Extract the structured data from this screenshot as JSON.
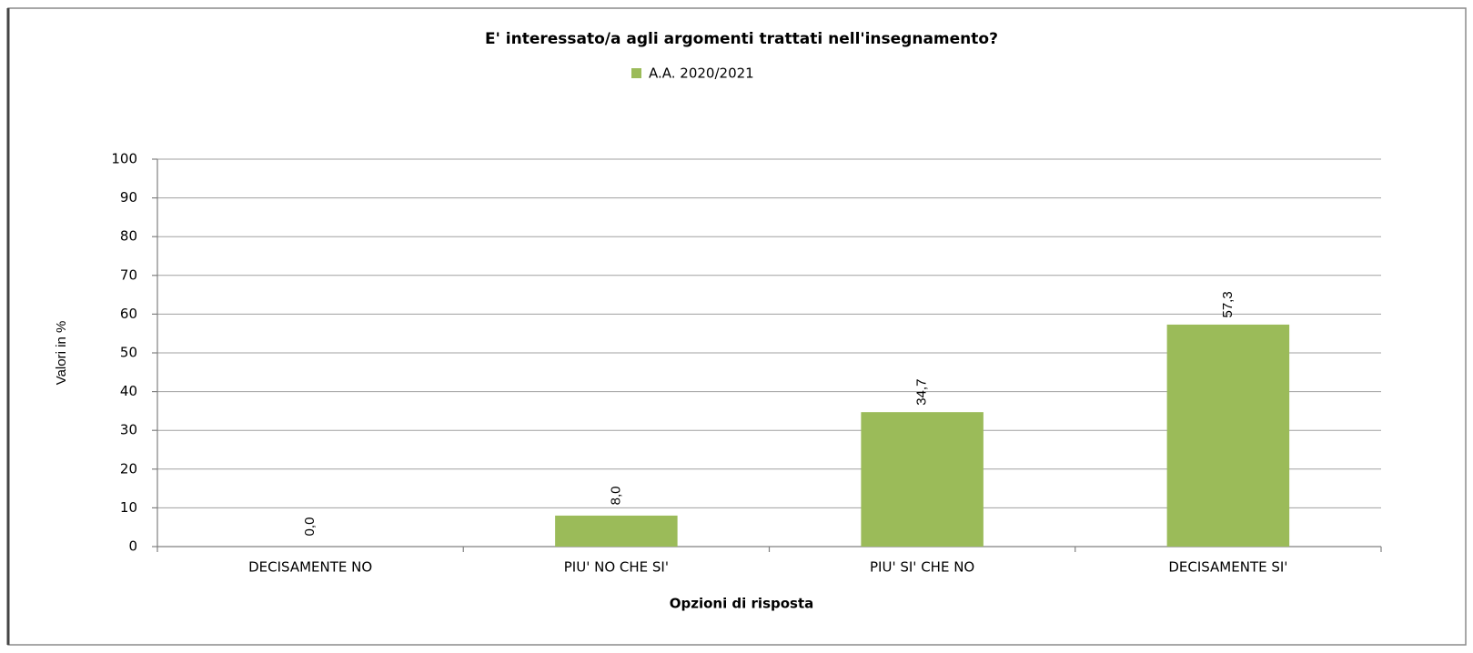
{
  "chart_data": {
    "type": "bar",
    "title": "E' interessato/a agli argomenti trattati nell'insegnamento?",
    "x_label": "Opzioni di risposta",
    "y_label": "Valori in %",
    "categories": [
      "DECISAMENTE NO",
      "PIU' NO CHE SI'",
      "PIU' SI' CHE NO",
      "DECISAMENTE SI'"
    ],
    "series": [
      {
        "name": "A.A. 2020/2021",
        "color": "#9bbb59",
        "values": [
          0,
          8,
          34.7,
          57.3
        ],
        "value_labels": [
          "0,0",
          "8,0",
          "34,7",
          "57,3"
        ]
      }
    ],
    "ylim": [
      0,
      100
    ],
    "yticks": [
      0,
      10,
      20,
      30,
      40,
      50,
      60,
      70,
      80,
      90,
      100
    ],
    "grid": true,
    "legend": "top"
  }
}
